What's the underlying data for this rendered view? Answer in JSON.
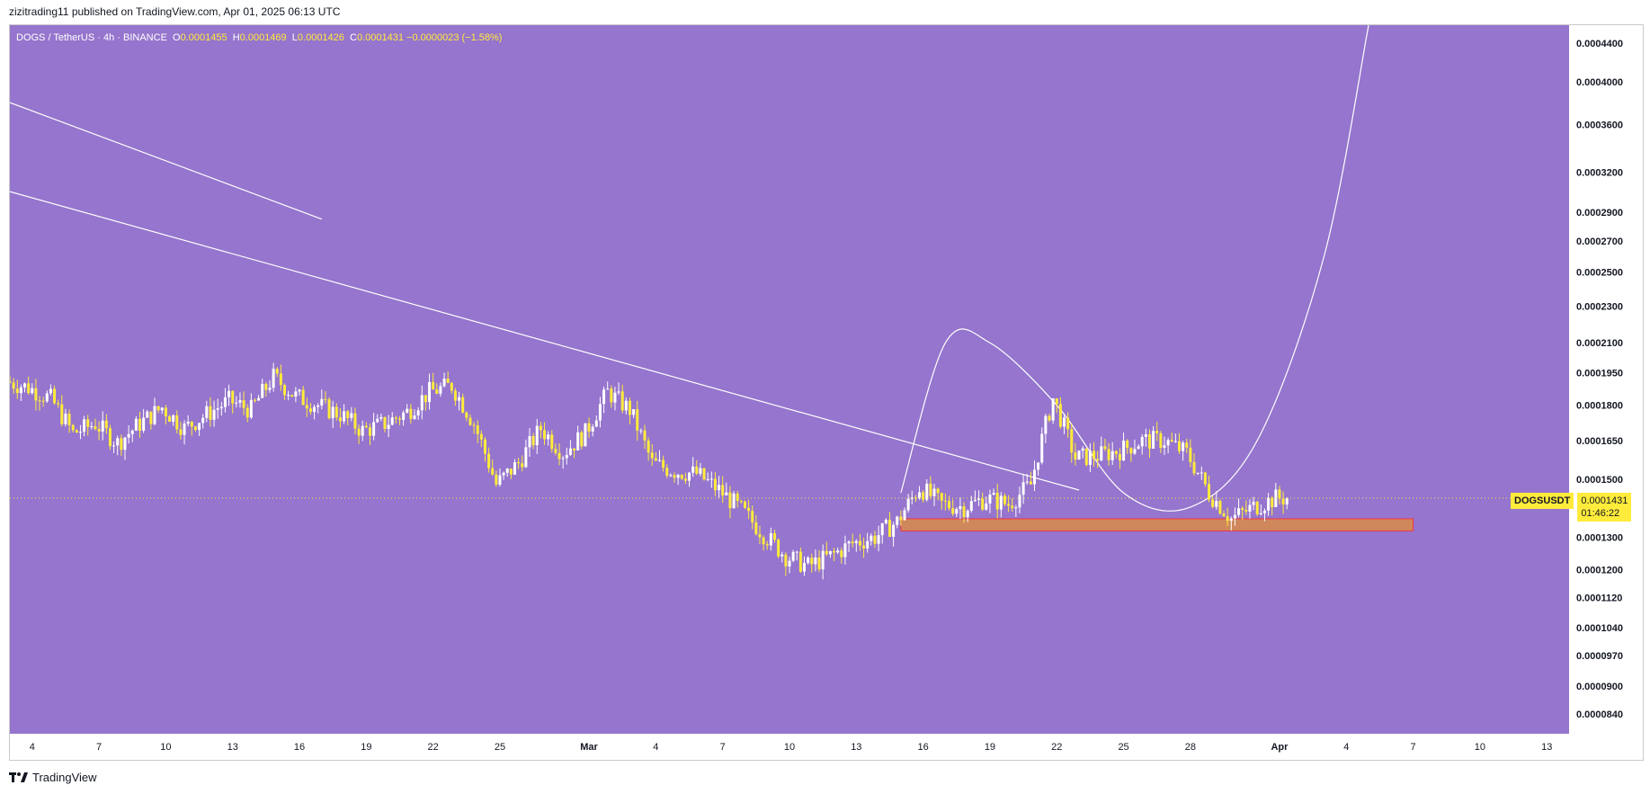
{
  "header": {
    "published_line": "zizitrading11 published on TradingView.com, Apr 01, 2025 06:13 UTC"
  },
  "symbol_bar": {
    "pair": "DOGS / TetherUS · 4h · BINANCE",
    "open": "0.0001455",
    "high": "0.0001469",
    "low": "0.0001426",
    "close": "0.0001431",
    "change": "−0.0000023 (−1.58%)"
  },
  "price_tag": {
    "symbol": "DOGSUSDT",
    "price": "0.0001431",
    "countdown": "01:46:22"
  },
  "footer": {
    "brand": "TradingView"
  },
  "colors": {
    "background": "#9575cd",
    "candle_up": "#ffffff",
    "candle_down": "#ffeb3b",
    "drawing": "#ffffff",
    "zone_fill": "#ff9800",
    "zone_border": "#f23645",
    "axis_text": "#131722"
  },
  "chart_data": {
    "type": "candlestick",
    "timeframe": "4h",
    "y_scale": "log",
    "ylim": [
      8e-05,
      0.00046
    ],
    "y_ticks": [
      "0.0004400",
      "0.0004000",
      "0.0003600",
      "0.0003200",
      "0.0002900",
      "0.0002700",
      "0.0002500",
      "0.0002300",
      "0.0002100",
      "0.0001950",
      "0.0001800",
      "0.0001650",
      "0.0001500",
      "0.0001300",
      "0.0001200",
      "0.0001120",
      "0.0001040",
      "0.0000970",
      "0.0000900",
      "0.0000840"
    ],
    "x_ticks": [
      "4",
      "7",
      "10",
      "13",
      "16",
      "19",
      "22",
      "25",
      "Mar",
      "4",
      "7",
      "10",
      "13",
      "16",
      "19",
      "22",
      "25",
      "28",
      "Apr",
      "4",
      "7",
      "10",
      "13"
    ],
    "x_tick_dates": [
      "2025-02-04",
      "2025-02-07",
      "2025-02-10",
      "2025-02-13",
      "2025-02-16",
      "2025-02-19",
      "2025-02-22",
      "2025-02-25",
      "2025-03-01",
      "2025-03-04",
      "2025-03-07",
      "2025-03-10",
      "2025-03-13",
      "2025-03-16",
      "2025-03-19",
      "2025-03-22",
      "2025-03-25",
      "2025-03-28",
      "2025-04-01",
      "2025-04-04",
      "2025-04-07",
      "2025-04-10",
      "2025-04-13"
    ],
    "x_range": [
      "2025-02-03",
      "2025-04-14"
    ],
    "last_price": 0.0001431,
    "ohlc_close_path": [
      {
        "date": "2025-02-03",
        "close": 0.000191
      },
      {
        "date": "2025-02-04",
        "close": 0.000188
      },
      {
        "date": "2025-02-05",
        "close": 0.000183
      },
      {
        "date": "2025-02-06",
        "close": 0.000168
      },
      {
        "date": "2025-02-07",
        "close": 0.000172
      },
      {
        "date": "2025-02-08",
        "close": 0.000164
      },
      {
        "date": "2025-02-09",
        "close": 0.000172
      },
      {
        "date": "2025-02-10",
        "close": 0.000179
      },
      {
        "date": "2025-02-11",
        "close": 0.00017
      },
      {
        "date": "2025-02-12",
        "close": 0.000176
      },
      {
        "date": "2025-02-13",
        "close": 0.000182
      },
      {
        "date": "2025-02-14",
        "close": 0.000178
      },
      {
        "date": "2025-02-15",
        "close": 0.000193
      },
      {
        "date": "2025-02-16",
        "close": 0.000184
      },
      {
        "date": "2025-02-17",
        "close": 0.00018
      },
      {
        "date": "2025-02-18",
        "close": 0.000176
      },
      {
        "date": "2025-02-19",
        "close": 0.000169
      },
      {
        "date": "2025-02-20",
        "close": 0.000172
      },
      {
        "date": "2025-02-21",
        "close": 0.000177
      },
      {
        "date": "2025-02-22",
        "close": 0.000186
      },
      {
        "date": "2025-02-23",
        "close": 0.000189
      },
      {
        "date": "2025-02-24",
        "close": 0.000172
      },
      {
        "date": "2025-02-25",
        "close": 0.000148
      },
      {
        "date": "2025-02-26",
        "close": 0.000156
      },
      {
        "date": "2025-02-27",
        "close": 0.00017
      },
      {
        "date": "2025-02-28",
        "close": 0.00016
      },
      {
        "date": "2025-03-01",
        "close": 0.000168
      },
      {
        "date": "2025-03-02",
        "close": 0.000186
      },
      {
        "date": "2025-03-03",
        "close": 0.000178
      },
      {
        "date": "2025-03-04",
        "close": 0.000156
      },
      {
        "date": "2025-03-05",
        "close": 0.000153
      },
      {
        "date": "2025-03-06",
        "close": 0.000152
      },
      {
        "date": "2025-03-07",
        "close": 0.000146
      },
      {
        "date": "2025-03-08",
        "close": 0.000139
      },
      {
        "date": "2025-03-09",
        "close": 0.000131
      },
      {
        "date": "2025-03-10",
        "close": 0.000124
      },
      {
        "date": "2025-03-11",
        "close": 0.000121
      },
      {
        "date": "2025-03-12",
        "close": 0.000124
      },
      {
        "date": "2025-03-13",
        "close": 0.000128
      },
      {
        "date": "2025-03-14",
        "close": 0.00013
      },
      {
        "date": "2025-03-15",
        "close": 0.000135
      },
      {
        "date": "2025-03-16",
        "close": 0.000147
      },
      {
        "date": "2025-03-17",
        "close": 0.000141
      },
      {
        "date": "2025-03-18",
        "close": 0.00014
      },
      {
        "date": "2025-03-19",
        "close": 0.000143
      },
      {
        "date": "2025-03-20",
        "close": 0.000141
      },
      {
        "date": "2025-03-21",
        "close": 0.000148
      },
      {
        "date": "2025-03-22",
        "close": 0.000183
      },
      {
        "date": "2025-03-23",
        "close": 0.000158
      },
      {
        "date": "2025-03-24",
        "close": 0.000159
      },
      {
        "date": "2025-03-25",
        "close": 0.000161
      },
      {
        "date": "2025-03-26",
        "close": 0.000165
      },
      {
        "date": "2025-03-27",
        "close": 0.000165
      },
      {
        "date": "2025-03-28",
        "close": 0.00016
      },
      {
        "date": "2025-03-29",
        "close": 0.000145
      },
      {
        "date": "2025-03-30",
        "close": 0.000136
      },
      {
        "date": "2025-03-31",
        "close": 0.00014
      },
      {
        "date": "2025-04-01",
        "close": 0.0001431
      }
    ],
    "annotations": [
      {
        "type": "trendline",
        "from": {
          "date": "2025-02-03",
          "price": 0.00038
        },
        "to": {
          "date": "2025-02-17",
          "price": 0.000285
        }
      },
      {
        "type": "trendline",
        "from": {
          "date": "2025-02-03",
          "price": 0.000305
        },
        "to": {
          "date": "2025-03-23",
          "price": 0.000146
        }
      },
      {
        "type": "zone",
        "from_date": "2025-03-15",
        "to_date": "2025-04-07",
        "top": 0.000136,
        "bottom": 0.000132
      },
      {
        "type": "projection_curve",
        "points": [
          {
            "date": "2025-03-15",
            "price": 0.000145
          },
          {
            "date": "2025-03-17",
            "price": 0.00021
          },
          {
            "date": "2025-03-19",
            "price": 0.00021
          },
          {
            "date": "2025-03-22",
            "price": 0.00018
          },
          {
            "date": "2025-03-25",
            "price": 0.000145
          },
          {
            "date": "2025-03-28",
            "price": 0.00014
          },
          {
            "date": "2025-03-31",
            "price": 0.000165
          },
          {
            "date": "2025-04-03",
            "price": 0.00026
          },
          {
            "date": "2025-04-05",
            "price": 0.00046
          }
        ]
      }
    ]
  }
}
